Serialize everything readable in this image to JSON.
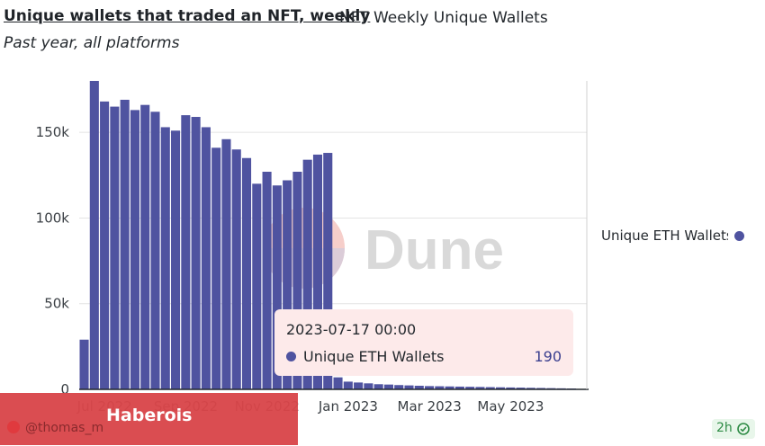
{
  "header": {
    "title": "Unique wallets that traded an NFT, weekly",
    "query_name": "NFT Weekly Unique Wallets",
    "subtitle": "Past year, all platforms"
  },
  "watermark": {
    "text": "Dune"
  },
  "legend": {
    "label": "Unique ETH Wallets",
    "color": "#4f53a0"
  },
  "tooltip": {
    "date": "2023-07-17 00:00",
    "series": "Unique ETH Wallets",
    "value": "190"
  },
  "footer": {
    "author": "Haberois",
    "handle": "@thomas_m",
    "age": "2h",
    "age_icon": "check-circle-icon"
  },
  "chart_data": {
    "type": "bar",
    "title": "Unique wallets that traded an NFT, weekly",
    "subtitle": "Past year, all platforms",
    "xlabel": "",
    "ylabel": "",
    "ylim": [
      0,
      180000
    ],
    "y_ticks": [
      0,
      50000,
      100000,
      150000
    ],
    "y_tick_labels": [
      "0",
      "50k",
      "100k",
      "150k"
    ],
    "x_tick_labels": [
      "Jul 2022",
      "Sep 2022",
      "Nov 2022",
      "Jan 2023",
      "Mar 2023",
      "May 2023"
    ],
    "x_tick_indices": [
      2,
      10,
      18,
      26,
      34,
      42
    ],
    "grid": true,
    "legend_position": "right",
    "color": "#4f53a0",
    "series": [
      {
        "name": "Unique ETH Wallets",
        "values": [
          29000,
          180000,
          168000,
          165000,
          169000,
          163000,
          166000,
          162000,
          153000,
          151000,
          160000,
          159000,
          153000,
          141000,
          146000,
          140000,
          135000,
          120000,
          127000,
          119000,
          122000,
          127000,
          134000,
          137000,
          138000,
          7000,
          4500,
          4000,
          3500,
          3000,
          2800,
          2500,
          2300,
          2100,
          1900,
          1800,
          1700,
          1600,
          1500,
          1400,
          1300,
          1200,
          1100,
          1000,
          900,
          800,
          700,
          600,
          500,
          190
        ]
      }
    ]
  }
}
